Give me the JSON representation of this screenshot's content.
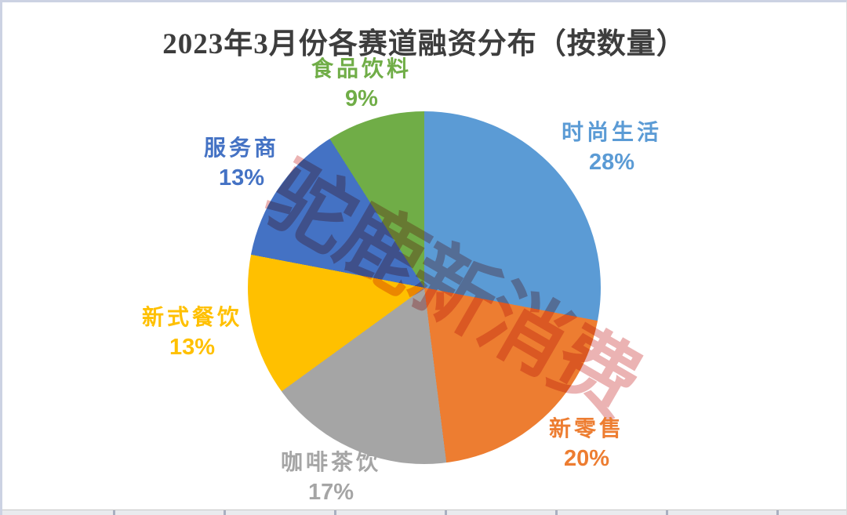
{
  "title": "2023年3月份各赛道融资分布（按数量）",
  "watermark": {
    "text": "驼鹿新消费",
    "color": "#d66060"
  },
  "chart_data": {
    "type": "pie",
    "title": "2023年3月份各赛道融资分布（按数量）",
    "start_angle_deg": 0,
    "direction": "clockwise",
    "value_format": "percent",
    "legend": "none",
    "labels_position": "outside",
    "slices": [
      {
        "label": "时尚生活",
        "value": 28,
        "color": "#5B9BD5"
      },
      {
        "label": "新零售",
        "value": 20,
        "color": "#ED7D31"
      },
      {
        "label": "咖啡茶饮",
        "value": 17,
        "color": "#A5A5A5"
      },
      {
        "label": "新式餐饮",
        "value": 13,
        "color": "#FFC000"
      },
      {
        "label": "服务商",
        "value": 13,
        "color": "#4472C4"
      },
      {
        "label": "食品饮料",
        "value": 9,
        "color": "#70AD47"
      }
    ]
  }
}
